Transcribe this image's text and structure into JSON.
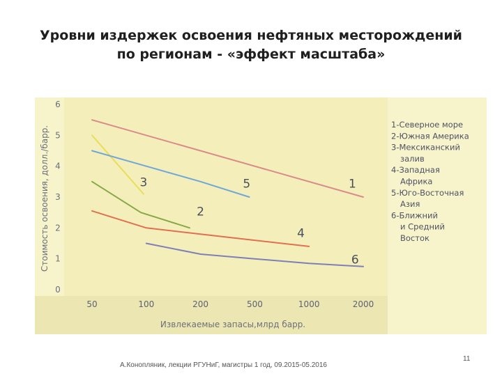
{
  "slide": {
    "title_line1": "Уровни издержек освоения нефтяных месторождений",
    "title_line2": "по регионам - «эффект масштаба»",
    "footer": "А.Конопляник, лекции РГУНиГ, магистры 1 год, 09.2015-05.2016",
    "page_number": "11"
  },
  "chart_data": {
    "type": "line",
    "title": "",
    "xlabel": "Извлекаемые запасы,млрд барр.",
    "ylabel": "Стоимость освоения, долл./барр.",
    "categories": [
      "50",
      "100",
      "200",
      "500",
      "1000",
      "2000"
    ],
    "yticks": [
      "0",
      "1",
      "2",
      "3",
      "4",
      "5",
      "6"
    ],
    "ylim": [
      0,
      6
    ],
    "grid": false,
    "legend_position": "right",
    "legend": [
      "1-Северное море",
      "2-Южная Америка",
      "3-Мексиканский",
      "залив",
      "4-Западная",
      "Африка",
      "5-Юго-Восточная",
      "Азия",
      "6-Ближний",
      "и Средний",
      "Восток"
    ],
    "series": [
      {
        "name": "1",
        "color": "#d98a8a",
        "label_at": [
          4.8,
          3.3
        ],
        "x": [
          0,
          5
        ],
        "y": [
          5.5,
          3.0
        ]
      },
      {
        "name": "2",
        "color": "#86a845",
        "label_at": [
          2.0,
          2.4
        ],
        "x": [
          0,
          0.9,
          1.8
        ],
        "y": [
          3.5,
          2.5,
          2.0
        ]
      },
      {
        "name": "3",
        "color": "#eadd5a",
        "label_at": [
          0.95,
          3.35
        ],
        "x": [
          0,
          0.5,
          0.95
        ],
        "y": [
          5.0,
          4.0,
          3.1
        ]
      },
      {
        "name": "4",
        "color": "#e07050",
        "label_at": [
          3.85,
          1.7
        ],
        "x": [
          0,
          1,
          2,
          3,
          4
        ],
        "y": [
          2.55,
          2.0,
          1.8,
          1.6,
          1.4
        ]
      },
      {
        "name": "5",
        "color": "#6fa8d8",
        "label_at": [
          2.85,
          3.3
        ],
        "x": [
          0,
          1,
          2,
          2.9
        ],
        "y": [
          4.5,
          4.0,
          3.5,
          3.0
        ]
      },
      {
        "name": "6",
        "color": "#7f7fb8",
        "label_at": [
          4.85,
          0.85
        ],
        "x": [
          1,
          2,
          3,
          4,
          5
        ],
        "y": [
          1.5,
          1.15,
          1.0,
          0.85,
          0.75
        ]
      }
    ]
  }
}
